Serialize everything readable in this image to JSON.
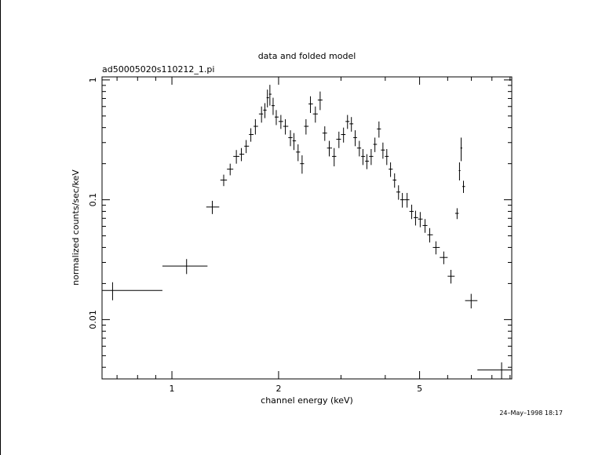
{
  "chart_data": {
    "type": "errorbar-scatter",
    "title": "data and folded model",
    "subtitle": "ad50005020s110212_1.pi",
    "x_label": "channel energy (keV)",
    "y_label": "normalized counts/sec/keV",
    "timestamp": "24–May–1998 18:17",
    "log_x": true,
    "log_y": true,
    "color": "#000000",
    "xlim": [
      0.635,
      9.1
    ],
    "ylim": [
      0.0032,
      1.06
    ],
    "xticks": [
      1,
      2,
      5
    ],
    "xminor_ticks": [
      0.7,
      0.8,
      0.9,
      3,
      4,
      6,
      7,
      8,
      9
    ],
    "yticks": [
      0.01,
      0.1,
      1
    ],
    "yminor_ticks": [
      0.004,
      0.005,
      0.006,
      0.007,
      0.008,
      0.009,
      0.02,
      0.03,
      0.04,
      0.05,
      0.06,
      0.07,
      0.08,
      0.09,
      0.2,
      0.3,
      0.4,
      0.5,
      0.6,
      0.7,
      0.8,
      0.9
    ],
    "x": [
      0.68,
      1.1,
      1.3,
      1.4,
      1.46,
      1.52,
      1.57,
      1.62,
      1.67,
      1.72,
      1.79,
      1.83,
      1.86,
      1.89,
      1.93,
      1.97,
      2.03,
      2.09,
      2.16,
      2.21,
      2.27,
      2.33,
      2.39,
      2.46,
      2.54,
      2.62,
      2.7,
      2.78,
      2.87,
      2.96,
      3.05,
      3.13,
      3.21,
      3.29,
      3.38,
      3.46,
      3.55,
      3.65,
      3.74,
      3.84,
      3.94,
      4.04,
      4.14,
      4.25,
      4.36,
      4.47,
      4.61,
      4.75,
      4.87,
      5.02,
      5.18,
      5.34,
      5.56,
      5.85,
      6.13,
      6.38,
      6.48,
      6.55,
      6.65,
      6.99,
      8.52
    ],
    "x_low": [
      0.635,
      0.94,
      1.25,
      1.37,
      1.43,
      1.49,
      1.55,
      1.6,
      1.65,
      1.7,
      1.76,
      1.81,
      1.85,
      1.88,
      1.91,
      1.95,
      2.0,
      2.06,
      2.13,
      2.19,
      2.24,
      2.3,
      2.36,
      2.43,
      2.5,
      2.58,
      2.66,
      2.74,
      2.83,
      2.91,
      3.0,
      3.09,
      3.17,
      3.25,
      3.33,
      3.42,
      3.51,
      3.6,
      3.7,
      3.79,
      3.89,
      3.99,
      4.09,
      4.2,
      4.3,
      4.41,
      4.54,
      4.68,
      4.81,
      4.95,
      5.1,
      5.26,
      5.45,
      5.7,
      6.0,
      6.3,
      6.45,
      6.52,
      6.6,
      6.72,
      7.28
    ],
    "x_high": [
      0.94,
      1.26,
      1.36,
      1.43,
      1.49,
      1.55,
      1.6,
      1.65,
      1.7,
      1.75,
      1.81,
      1.85,
      1.88,
      1.91,
      1.95,
      2.0,
      2.06,
      2.13,
      2.19,
      2.24,
      2.3,
      2.36,
      2.43,
      2.5,
      2.58,
      2.66,
      2.74,
      2.83,
      2.91,
      3.0,
      3.09,
      3.17,
      3.25,
      3.33,
      3.42,
      3.51,
      3.6,
      3.7,
      3.79,
      3.89,
      3.99,
      4.09,
      4.2,
      4.3,
      4.41,
      4.54,
      4.68,
      4.81,
      4.95,
      5.1,
      5.26,
      5.45,
      5.7,
      6.0,
      6.28,
      6.45,
      6.52,
      6.6,
      6.72,
      7.28,
      9.1
    ],
    "values": [
      0.0175,
      0.028,
      0.087,
      0.146,
      0.18,
      0.23,
      0.24,
      0.28,
      0.35,
      0.41,
      0.52,
      0.56,
      0.71,
      0.76,
      0.61,
      0.49,
      0.45,
      0.41,
      0.33,
      0.31,
      0.25,
      0.2,
      0.41,
      0.63,
      0.52,
      0.68,
      0.36,
      0.27,
      0.23,
      0.32,
      0.35,
      0.45,
      0.43,
      0.33,
      0.27,
      0.23,
      0.21,
      0.23,
      0.29,
      0.39,
      0.26,
      0.23,
      0.18,
      0.146,
      0.116,
      0.1,
      0.1,
      0.08,
      0.071,
      0.069,
      0.061,
      0.051,
      0.04,
      0.033,
      0.023,
      0.077,
      0.175,
      0.27,
      0.129,
      0.0144,
      0.0038
    ],
    "y_err": [
      0.003,
      0.004,
      0.011,
      0.016,
      0.02,
      0.03,
      0.03,
      0.035,
      0.045,
      0.06,
      0.08,
      0.08,
      0.12,
      0.15,
      0.1,
      0.07,
      0.06,
      0.06,
      0.05,
      0.05,
      0.04,
      0.035,
      0.06,
      0.1,
      0.08,
      0.12,
      0.05,
      0.04,
      0.04,
      0.05,
      0.05,
      0.06,
      0.06,
      0.05,
      0.04,
      0.035,
      0.03,
      0.035,
      0.04,
      0.06,
      0.04,
      0.035,
      0.025,
      0.02,
      0.016,
      0.014,
      0.014,
      0.011,
      0.01,
      0.01,
      0.008,
      0.007,
      0.005,
      0.004,
      0.003,
      0.008,
      0.03,
      0.06,
      0.015,
      0.002,
      0.0006
    ]
  }
}
